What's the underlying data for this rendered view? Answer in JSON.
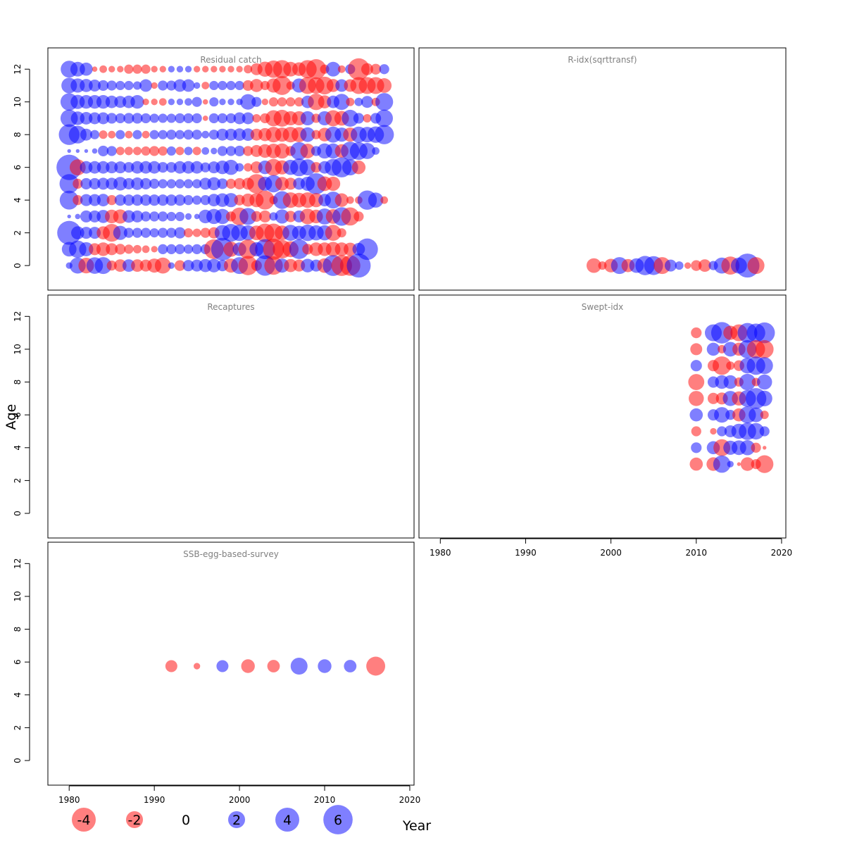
{
  "chart_data": {
    "type": "scatter",
    "subtype": "bubble",
    "xlabel": "Year",
    "ylabel": "Age",
    "xlim": [
      1977.5,
      2020.5
    ],
    "ylim": [
      -1.5,
      13.3
    ],
    "x_ticks": [
      1980,
      1990,
      2000,
      2010,
      2020
    ],
    "y_ticks": [
      0,
      2,
      4,
      6,
      8,
      10,
      12
    ],
    "colors": {
      "negative": "#ff0000",
      "positive": "#0000ff",
      "alpha": 0.5
    },
    "legend": {
      "position": "bottom",
      "entries": [
        {
          "label": "-4",
          "value": -4
        },
        {
          "label": "-2",
          "value": -2
        },
        {
          "label": "0",
          "value": 0
        },
        {
          "label": "2",
          "value": 2
        },
        {
          "label": "4",
          "value": 4
        },
        {
          "label": "6",
          "value": 6
        }
      ]
    },
    "panels": [
      {
        "id": "residual-catch",
        "title": "Residual catch",
        "series_by_age": [
          {
            "age": 12,
            "values": [
              2.0,
              1.5,
              1.2,
              -0.2,
              -0.4,
              -0.3,
              -0.3,
              -0.6,
              -0.6,
              -0.6,
              -0.3,
              -0.3,
              0.3,
              0.3,
              0.3,
              -0.3,
              -0.3,
              -0.3,
              -0.3,
              -0.3,
              -0.3,
              -0.5,
              -1.0,
              -1.6,
              -2.1,
              -2.3,
              -1.5,
              -1.3,
              -2.3,
              -2.8,
              -0.6,
              1.5,
              -0.4,
              0.7,
              -3.3,
              -1.0,
              -0.8,
              0.7
            ]
          },
          {
            "age": 11,
            "values": [
              1.7,
              1.4,
              1.2,
              1.0,
              0.8,
              0.7,
              0.6,
              0.6,
              0.5,
              1.1,
              -0.3,
              0.7,
              0.7,
              1.1,
              1.1,
              0.3,
              -0.4,
              0.6,
              0.6,
              0.6,
              0.6,
              -0.8,
              -1.2,
              -0.6,
              -1.4,
              -2.5,
              -0.5,
              1.4,
              -2.0,
              -1.9,
              -2.2,
              -1.2,
              1.1,
              -1.1,
              -2.0,
              -2.0,
              -2.0,
              -1.5
            ]
          },
          {
            "age": 10,
            "values": [
              2.1,
              1.4,
              1.3,
              1.3,
              1.3,
              1.1,
              1.0,
              1.1,
              1.3,
              -0.3,
              -0.3,
              -0.4,
              0.3,
              0.3,
              0.4,
              0.7,
              -0.2,
              0.6,
              0.3,
              0.3,
              0.3,
              1.7,
              0.7,
              -0.3,
              -0.6,
              -0.6,
              -0.6,
              -0.6,
              1.1,
              -1.9,
              -1.2,
              1.1,
              1.8,
              -0.5,
              0.5,
              1.0,
              -0.5,
              2.2
            ]
          },
          {
            "age": 9,
            "values": [
              2.1,
              1.3,
              1.1,
              1.0,
              1.0,
              0.8,
              0.7,
              0.8,
              0.8,
              0.7,
              0.6,
              0.6,
              0.6,
              0.7,
              0.7,
              0.7,
              -0.2,
              0.7,
              0.7,
              0.7,
              1.0,
              1.0,
              -0.5,
              -0.7,
              -1.8,
              -2.0,
              -1.4,
              -1.4,
              1.4,
              -0.6,
              1.4,
              -1.8,
              -1.5,
              2.0,
              0.8,
              -0.5,
              0.8,
              2.1
            ]
          },
          {
            "age": 8,
            "values": [
              3.0,
              2.2,
              1.0,
              0.6,
              -0.5,
              -0.4,
              0.6,
              -0.4,
              0.6,
              -0.4,
              0.6,
              0.6,
              0.7,
              0.6,
              0.7,
              0.7,
              0.4,
              0.7,
              1.0,
              1.0,
              1.1,
              1.1,
              -1.0,
              -1.2,
              -1.7,
              -1.4,
              -1.7,
              -1.6,
              1.5,
              -0.6,
              -1.3,
              1.8,
              1.4,
              -1.4,
              1.8,
              1.7,
              1.9,
              2.6
            ]
          },
          {
            "age": 7,
            "values": [
              0.1,
              0.1,
              0.1,
              0.2,
              0.8,
              0.7,
              -0.5,
              -0.5,
              -0.5,
              -0.6,
              -0.7,
              -0.6,
              0.6,
              -0.5,
              0.5,
              -0.5,
              0.4,
              0.3,
              0.7,
              0.7,
              0.8,
              -0.7,
              -1.0,
              -1.3,
              -1.5,
              -1.6,
              -0.7,
              2.2,
              -1.5,
              0.7,
              1.6,
              1.6,
              -1.3,
              2.4,
              2.2,
              1.8,
              0.4
            ]
          },
          {
            "age": 6,
            "values": [
              4.5,
              -1.8,
              1.1,
              1.1,
              1.1,
              1.0,
              1.0,
              0.8,
              1.1,
              1.1,
              1.1,
              0.8,
              0.8,
              1.1,
              1.1,
              1.1,
              0.7,
              1.0,
              1.3,
              1.6,
              0.5,
              -0.5,
              -1.0,
              1.3,
              -2.0,
              -1.4,
              1.6,
              2.2,
              1.8,
              -0.8,
              1.1,
              2.0,
              2.8,
              1.8,
              -1.3
            ]
          },
          {
            "age": 5,
            "values": [
              2.6,
              -0.7,
              0.9,
              0.9,
              1.0,
              1.0,
              1.3,
              0.9,
              1.1,
              0.9,
              0.7,
              0.6,
              0.6,
              0.6,
              0.6,
              0.6,
              1.0,
              1.2,
              0.8,
              -0.7,
              -0.9,
              -1.0,
              -2.6,
              1.4,
              2.1,
              -1.3,
              -1.0,
              1.0,
              1.4,
              3.1,
              -1.5,
              -1.4
            ]
          },
          {
            "age": 4,
            "values": [
              2.5,
              -0.7,
              1.0,
              1.0,
              1.1,
              -0.7,
              0.9,
              0.9,
              0.9,
              0.9,
              0.9,
              0.9,
              0.9,
              0.9,
              0.7,
              0.6,
              0.7,
              1.1,
              1.3,
              1.4,
              -0.8,
              -1.2,
              -1.4,
              -2.5,
              -0.5,
              2.2,
              -1.7,
              -1.5,
              -1.7,
              -1.4,
              1.1,
              2.0,
              -1.3,
              -0.4,
              -0.4,
              2.6,
              1.6,
              -0.4
            ]
          },
          {
            "age": 3,
            "values": [
              0.1,
              0.2,
              1.0,
              1.0,
              1.2,
              -1.3,
              -1.4,
              1.1,
              1.0,
              0.7,
              0.7,
              0.7,
              0.6,
              0.6,
              0.3,
              0.2,
              1.3,
              1.6,
              1.6,
              -0.7,
              -2.2,
              2.0,
              -0.8,
              -1.0,
              0.5,
              1.4,
              -0.9,
              1.0,
              -1.7,
              -1.3,
              1.8,
              -1.5,
              2.4,
              -2.3,
              -0.7
            ]
          },
          {
            "age": 2,
            "values": [
              4.0,
              1.2,
              1.0,
              1.0,
              -1.2,
              -2.2,
              1.4,
              0.7,
              0.7,
              0.7,
              0.6,
              0.7,
              0.7,
              0.9,
              -0.6,
              -0.5,
              -0.7,
              -0.9,
              1.7,
              2.2,
              1.9,
              1.6,
              -1.5,
              -2.4,
              -2.4,
              -1.5,
              1.8,
              1.4,
              1.9,
              1.6,
              1.6,
              -1.8,
              -0.6
            ]
          },
          {
            "age": 1,
            "values": [
              1.5,
              2.1,
              1.4,
              -1.0,
              -1.3,
              -1.0,
              -0.8,
              -0.6,
              -0.5,
              -0.4,
              -0.3,
              0.7,
              0.7,
              0.7,
              0.6,
              0.7,
              0.7,
              -2.7,
              3.6,
              -1.6,
              1.3,
              -2.6,
              1.4,
              2.8,
              -3.1,
              -2.4,
              -1.8,
              2.7,
              -0.8,
              -1.3,
              -1.3,
              -1.5,
              -1.3,
              -1.2,
              1.1,
              3.2
            ]
          },
          {
            "age": 0,
            "values": [
              0.3,
              1.8,
              -1.7,
              1.9,
              2.0,
              -0.7,
              -1.1,
              1.1,
              -1.1,
              -1.0,
              -1.4,
              -1.8,
              0.3,
              -0.8,
              0.9,
              1.0,
              1.2,
              1.3,
              0.9,
              -1.4,
              2.0,
              -2.6,
              -0.8,
              2.9,
              -2.4,
              1.4,
              -1.2,
              -1.0,
              1.3,
              1.0,
              -1.5,
              3.0,
              -3.0,
              -2.9,
              4.0
            ]
          }
        ]
      },
      {
        "id": "r-idx",
        "title": "R-idx(sqrttransf)",
        "points": [
          {
            "year": 1998,
            "age": 0,
            "value": -1.5
          },
          {
            "year": 1999,
            "age": 0,
            "value": -0.5
          },
          {
            "year": 2000,
            "age": 0,
            "value": -1.3
          },
          {
            "year": 2001,
            "age": 0,
            "value": 2.0
          },
          {
            "year": 2002,
            "age": 0,
            "value": -1.2
          },
          {
            "year": 2003,
            "age": 0,
            "value": 1.5
          },
          {
            "year": 2004,
            "age": 0,
            "value": 2.6
          },
          {
            "year": 2005,
            "age": 0,
            "value": 2.5
          },
          {
            "year": 2006,
            "age": 0,
            "value": -2.0
          },
          {
            "year": 2007,
            "age": 0,
            "value": 1.0
          },
          {
            "year": 2008,
            "age": 0,
            "value": 0.5
          },
          {
            "year": 2009,
            "age": 0,
            "value": -0.3
          },
          {
            "year": 2010,
            "age": 0,
            "value": -0.8
          },
          {
            "year": 2011,
            "age": 0,
            "value": -1.1
          },
          {
            "year": 2012,
            "age": 0,
            "value": 0.6
          },
          {
            "year": 2013,
            "age": 0,
            "value": 1.8
          },
          {
            "year": 2014,
            "age": 0,
            "value": -2.3
          },
          {
            "year": 2015,
            "age": 0,
            "value": 1.8
          },
          {
            "year": 2016,
            "age": 0,
            "value": 4.0
          },
          {
            "year": 2017,
            "age": 0,
            "value": -2.0
          }
        ]
      },
      {
        "id": "recaptures",
        "title": "Recaptures",
        "points": []
      },
      {
        "id": "swept-idx",
        "title": "Swept-idx",
        "series_by_age": [
          {
            "age": 11,
            "years": [
              2010,
              2012,
              2013,
              2014,
              2015,
              2016,
              2017,
              2018
            ],
            "values": [
              -0.8,
              2.0,
              3.2,
              -1.4,
              -2.0,
              2.7,
              2.4,
              3.0
            ]
          },
          {
            "age": 10,
            "years": [
              2010,
              2012,
              2013,
              2014,
              2015,
              2016,
              2017,
              2018
            ],
            "values": [
              -1.0,
              1.2,
              -0.5,
              1.5,
              -1.2,
              2.3,
              -2.3,
              -2.3
            ]
          },
          {
            "age": 9,
            "years": [
              2010,
              2012,
              2013,
              2014,
              2015,
              2016,
              2017,
              2018
            ],
            "values": [
              0.9,
              -0.9,
              -2.4,
              -0.5,
              -0.8,
              1.7,
              2.4,
              2.0
            ]
          },
          {
            "age": 8,
            "years": [
              2010,
              2012,
              2013,
              2014,
              2015,
              2016,
              2017,
              2018
            ],
            "values": [
              -1.8,
              0.9,
              1.3,
              1.3,
              -0.6,
              1.9,
              -0.5,
              1.6
            ]
          },
          {
            "age": 7,
            "years": [
              2010,
              2012,
              2013,
              2014,
              2015,
              2016,
              2017,
              2018
            ],
            "values": [
              -1.6,
              -0.9,
              -1.0,
              1.6,
              -1.4,
              2.0,
              3.0,
              1.7
            ]
          },
          {
            "age": 6,
            "years": [
              2010,
              2012,
              2013,
              2014,
              2015,
              2016,
              2017,
              2018
            ],
            "values": [
              1.2,
              0.9,
              1.7,
              0.7,
              -1.2,
              2.0,
              1.5,
              -0.5
            ]
          },
          {
            "age": 5,
            "years": [
              2010,
              2012,
              2013,
              2014,
              2015,
              2016,
              2017,
              2018
            ],
            "values": [
              -0.7,
              -0.3,
              0.7,
              1.0,
              1.6,
              2.1,
              1.9,
              0.7
            ]
          },
          {
            "age": 4,
            "years": [
              2010,
              2012,
              2013,
              2014,
              2015,
              2016,
              2017,
              2018
            ],
            "values": [
              0.8,
              1.2,
              -2.0,
              1.4,
              1.5,
              1.6,
              -0.7,
              -0.1
            ]
          },
          {
            "age": 3,
            "years": [
              2010,
              2012,
              2013,
              2014,
              2015,
              2016,
              2017,
              2018
            ],
            "values": [
              -1.2,
              -1.3,
              2.1,
              0.3,
              -0.1,
              -1.3,
              -0.7,
              -2.2
            ]
          }
        ]
      },
      {
        "id": "ssb-egg",
        "title": "SSB-egg-based-survey",
        "points": [
          {
            "year": 1992,
            "age": 5.75,
            "value": -1.0
          },
          {
            "year": 1995,
            "age": 5.75,
            "value": -0.3
          },
          {
            "year": 1998,
            "age": 5.75,
            "value": 1.0
          },
          {
            "year": 2001,
            "age": 5.75,
            "value": -1.3
          },
          {
            "year": 2004,
            "age": 5.75,
            "value": -1.1
          },
          {
            "year": 2007,
            "age": 5.75,
            "value": 2.0
          },
          {
            "year": 2010,
            "age": 5.75,
            "value": 1.3
          },
          {
            "year": 2013,
            "age": 5.75,
            "value": 1.1
          },
          {
            "year": 2016,
            "age": 5.75,
            "value": -2.5
          }
        ]
      }
    ]
  }
}
